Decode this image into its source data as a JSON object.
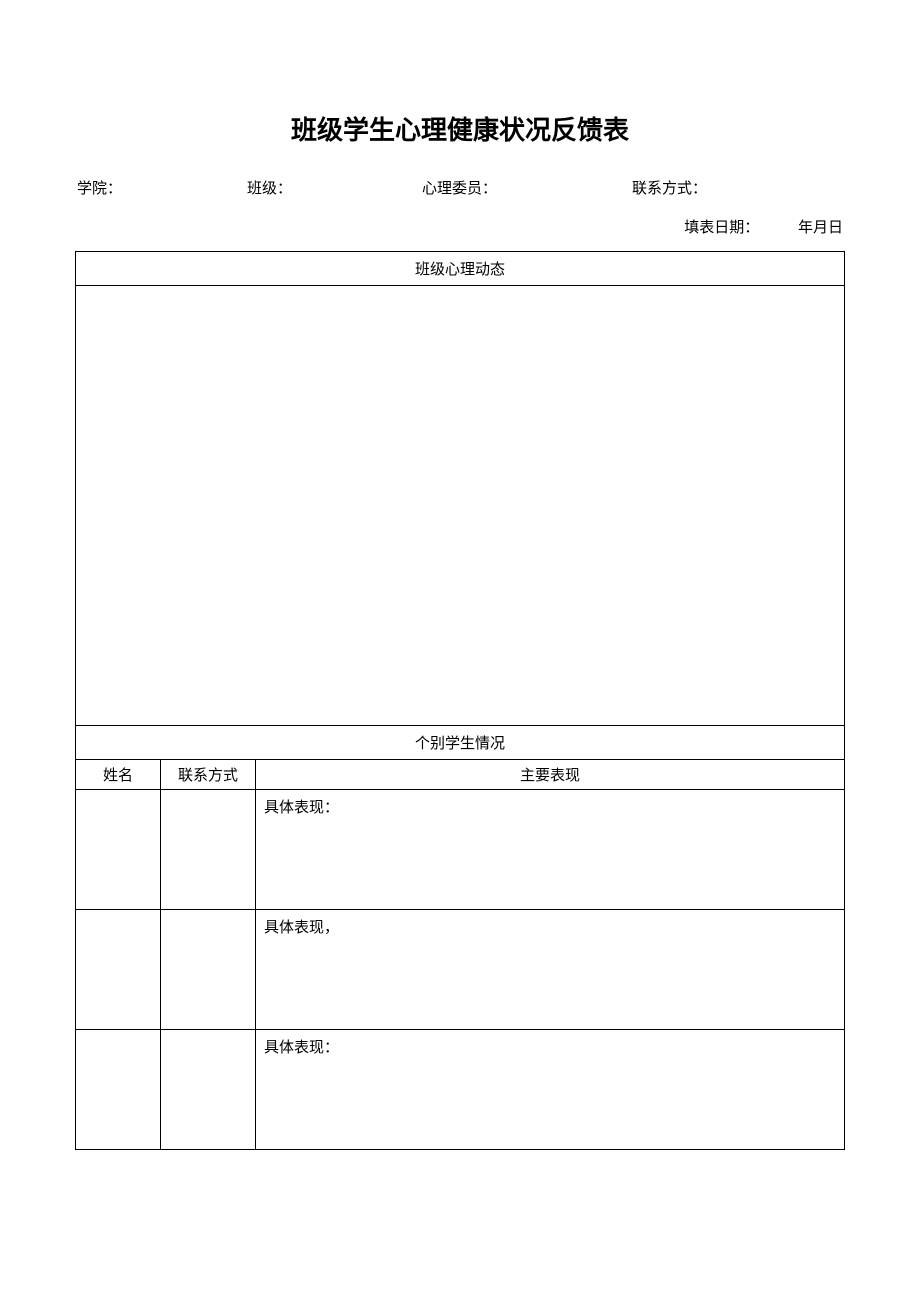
{
  "title": "班级学生心理健康状况反馈表",
  "info": {
    "college_label": "学院：",
    "class_label": "班级：",
    "counselor_label": "心理委员：",
    "contact_label": "联系方式："
  },
  "date": {
    "label": "填表日期：",
    "value": "年月日"
  },
  "sections": {
    "dynamics_header": "班级心理动态",
    "individual_header": "个别学生情况"
  },
  "columns": {
    "name": "姓名",
    "contact": "联系方式",
    "behavior": "主要表现"
  },
  "rows": [
    {
      "detail_label": "具体表现："
    },
    {
      "detail_label": "具体表现，"
    },
    {
      "detail_label": "具体表现："
    }
  ],
  "style": {
    "background_color": "#ffffff",
    "border_color": "#000000",
    "title_fontsize": 26,
    "body_fontsize": 15,
    "text_color": "#000000"
  }
}
